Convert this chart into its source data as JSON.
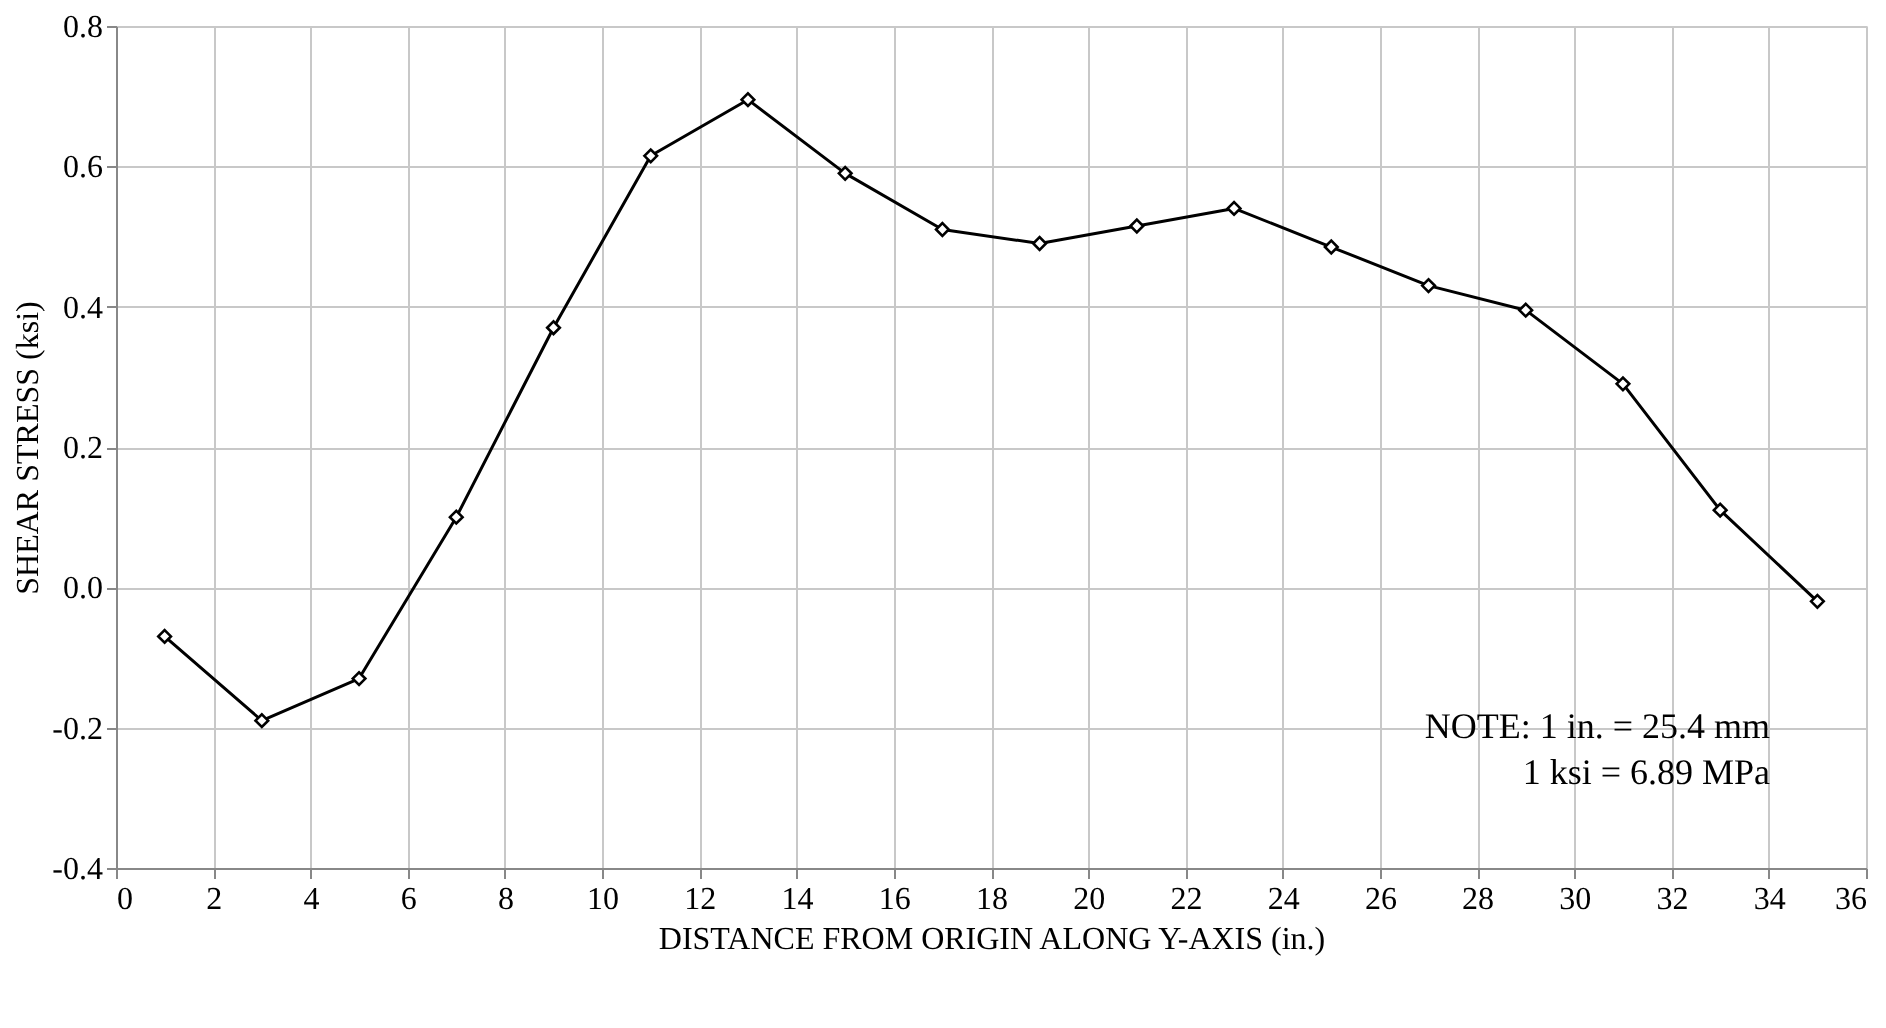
{
  "chart_data": {
    "type": "line",
    "xlabel": "DISTANCE FROM ORIGIN ALONG Y-AXIS (in.)",
    "ylabel": "SHEAR STRESS (ksi)",
    "x": [
      1,
      3,
      5,
      7,
      9,
      11,
      13,
      15,
      17,
      19,
      21,
      23,
      25,
      27,
      29,
      31,
      33,
      35
    ],
    "series": [
      {
        "color": "#000000",
        "values": [
          -0.07,
          -0.19,
          -0.13,
          0.1,
          0.37,
          0.615,
          0.695,
          0.59,
          0.51,
          0.49,
          0.515,
          0.54,
          0.485,
          0.43,
          0.395,
          0.29,
          0.11,
          -0.02
        ]
      }
    ],
    "xlim": [
      0,
      36
    ],
    "xticks": [
      0,
      2,
      4,
      6,
      8,
      10,
      12,
      14,
      16,
      18,
      20,
      22,
      24,
      26,
      28,
      30,
      32,
      34,
      36
    ],
    "ylim": [
      -0.4,
      0.8
    ],
    "yticks": [
      -0.4,
      -0.2,
      {
        "value": 0,
        "label": "0.0"
      },
      0.2,
      0.4,
      0.6,
      0.8
    ],
    "grid": true,
    "marker": "diamond",
    "line_style": "solid",
    "annotations": [
      "NOTE: 1 in. = 25.4 mm",
      "1 ksi = 6.89 MPa"
    ]
  }
}
